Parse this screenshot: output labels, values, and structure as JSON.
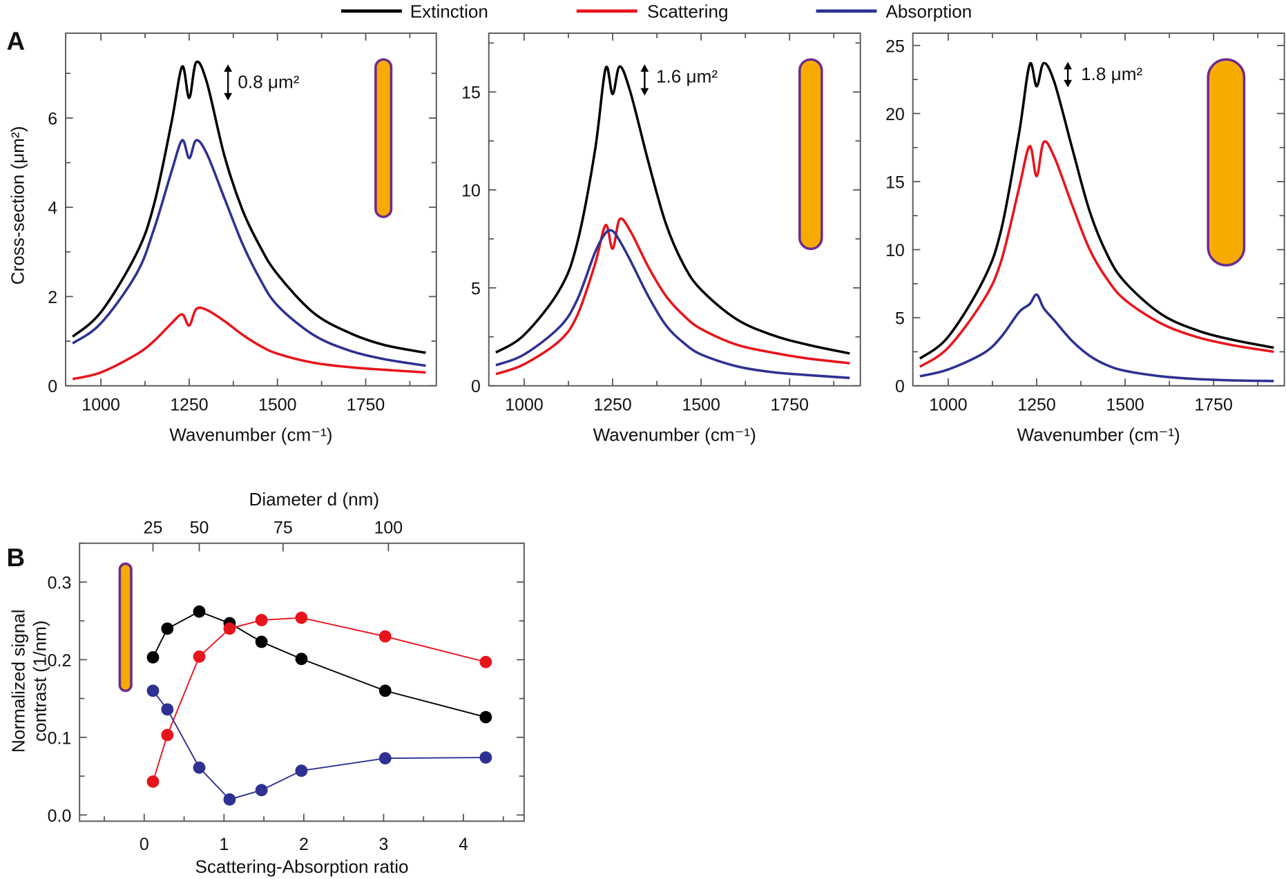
{
  "legend": [
    {
      "label": "Extinction",
      "color": "#000000"
    },
    {
      "label": "Scattering",
      "color": "#e8141c"
    },
    {
      "label": "Absorption",
      "color": "#2e3192"
    }
  ],
  "rod_colors": {
    "fill": "#f7ab00",
    "outline": "#6b2c91"
  },
  "chart_data": [
    {
      "type": "line",
      "panel_label": "A",
      "xlabel": "Wavenumber (cm⁻¹)",
      "ylabel": "Cross-section (μm²)",
      "xlim": [
        900,
        1950
      ],
      "ylim": [
        0,
        7.9
      ],
      "xticks": [
        1000,
        1250,
        1500,
        1750
      ],
      "yticks": [
        0,
        2,
        4,
        6
      ],
      "annotation": "0.8 μm²",
      "x": [
        920,
        1000,
        1100,
        1150,
        1200,
        1230,
        1250,
        1270,
        1300,
        1350,
        1400,
        1450,
        1500,
        1600,
        1700,
        1800,
        1920
      ],
      "series": [
        {
          "name": "Extinction",
          "values": [
            1.1,
            1.65,
            2.95,
            4.05,
            5.9,
            7.15,
            6.45,
            7.25,
            6.8,
            5.15,
            3.96,
            3.13,
            2.5,
            1.65,
            1.2,
            0.92,
            0.74
          ]
        },
        {
          "name": "Scattering",
          "values": [
            0.15,
            0.3,
            0.7,
            1.0,
            1.4,
            1.6,
            1.35,
            1.72,
            1.7,
            1.45,
            1.15,
            0.9,
            0.72,
            0.52,
            0.42,
            0.36,
            0.3
          ]
        },
        {
          "name": "Absorption",
          "values": [
            0.95,
            1.4,
            2.5,
            3.5,
            4.8,
            5.5,
            5.1,
            5.5,
            5.2,
            4.2,
            3.2,
            2.4,
            1.8,
            1.15,
            0.8,
            0.6,
            0.45
          ]
        }
      ]
    },
    {
      "type": "line",
      "xlabel": "Wavenumber (cm⁻¹)",
      "xlim": [
        900,
        1950
      ],
      "ylim": [
        0,
        18
      ],
      "xticks": [
        1000,
        1250,
        1500,
        1750
      ],
      "yticks": [
        0,
        5,
        10,
        15
      ],
      "annotation": "1.6 μm²",
      "x": [
        920,
        1000,
        1100,
        1150,
        1200,
        1230,
        1250,
        1270,
        1300,
        1350,
        1400,
        1450,
        1500,
        1600,
        1700,
        1800,
        1920
      ],
      "series": [
        {
          "name": "Extinction",
          "values": [
            1.7,
            2.6,
            4.9,
            7.3,
            12.0,
            16.2,
            14.9,
            16.3,
            15.0,
            11.5,
            8.3,
            6.2,
            4.9,
            3.4,
            2.6,
            2.1,
            1.65
          ]
        },
        {
          "name": "Scattering",
          "values": [
            0.6,
            1.1,
            2.3,
            3.6,
            6.2,
            8.2,
            7.0,
            8.5,
            7.9,
            6.1,
            4.6,
            3.6,
            2.9,
            2.1,
            1.7,
            1.4,
            1.15
          ]
        },
        {
          "name": "Absorption",
          "values": [
            1.05,
            1.6,
            3.0,
            4.4,
            6.8,
            7.8,
            7.9,
            7.4,
            6.4,
            4.6,
            3.1,
            2.2,
            1.6,
            1.0,
            0.7,
            0.55,
            0.4
          ]
        }
      ]
    },
    {
      "type": "line",
      "xlabel": "Wavenumber (cm⁻¹)",
      "xlim": [
        900,
        1950
      ],
      "ylim": [
        0,
        25.9
      ],
      "xticks": [
        1000,
        1250,
        1500,
        1750
      ],
      "yticks": [
        0,
        5,
        10,
        15,
        20,
        25
      ],
      "annotation": "1.8 μm²",
      "x": [
        920,
        1000,
        1100,
        1150,
        1200,
        1230,
        1250,
        1270,
        1300,
        1350,
        1400,
        1450,
        1500,
        1600,
        1700,
        1800,
        1920
      ],
      "series": [
        {
          "name": "Extinction",
          "values": [
            2.0,
            3.6,
            7.8,
            11.5,
            18.5,
            23.6,
            22.0,
            23.7,
            22.3,
            17.5,
            12.8,
            9.6,
            7.6,
            5.3,
            4.1,
            3.4,
            2.8
          ]
        },
        {
          "name": "Scattering",
          "values": [
            1.4,
            2.8,
            6.3,
            9.2,
            14.5,
            17.6,
            15.4,
            17.9,
            16.8,
            13.3,
            10.0,
            7.8,
            6.3,
            4.6,
            3.6,
            3.0,
            2.5
          ]
        },
        {
          "name": "Absorption",
          "values": [
            0.7,
            1.2,
            2.4,
            3.6,
            5.4,
            6.0,
            6.7,
            5.7,
            4.8,
            3.3,
            2.2,
            1.5,
            1.1,
            0.7,
            0.5,
            0.4,
            0.35
          ]
        }
      ]
    },
    {
      "type": "line",
      "panel_label": "B",
      "xlabel": "Scattering-Absorption ratio",
      "ylabel": [
        "Normalized signal",
        "contrast (1/nm)"
      ],
      "x2label": "Diameter d (nm)",
      "xlim": [
        -0.81,
        4.76
      ],
      "ylim": [
        -0.008,
        0.35
      ],
      "xticks": [
        0,
        1,
        2,
        3,
        4
      ],
      "yticks": [
        0.0,
        0.1,
        0.2,
        0.3
      ],
      "ytick_labels": [
        "0.0",
        "0.1",
        "0.2",
        "0.3"
      ],
      "x2ticks": [
        {
          "value": 0.11,
          "label": "25"
        },
        {
          "value": 0.69,
          "label": "50"
        },
        {
          "value": 1.74,
          "label": "75"
        },
        {
          "value": 3.06,
          "label": "100"
        }
      ],
      "x": [
        0.11,
        0.29,
        0.69,
        1.07,
        1.47,
        1.97,
        3.02,
        4.28
      ],
      "series": [
        {
          "name": "Extinction",
          "values": [
            0.203,
            0.24,
            0.262,
            0.247,
            0.223,
            0.201,
            0.16,
            0.126
          ]
        },
        {
          "name": "Scattering",
          "values": [
            0.043,
            0.103,
            0.204,
            0.24,
            0.251,
            0.254,
            0.23,
            0.197
          ]
        },
        {
          "name": "Absorption",
          "values": [
            0.16,
            0.136,
            0.061,
            0.02,
            0.032,
            0.057,
            0.073,
            0.074
          ]
        }
      ]
    }
  ]
}
